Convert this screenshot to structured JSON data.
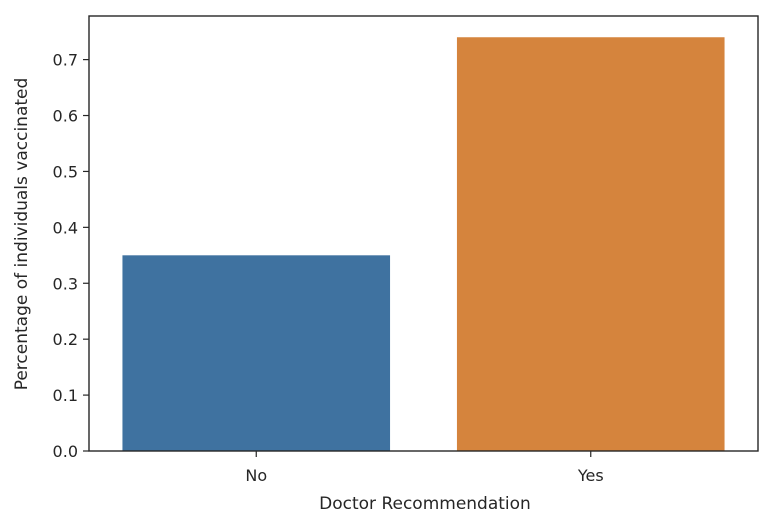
{
  "chart_data": {
    "type": "bar",
    "categories": [
      "No",
      "Yes"
    ],
    "values": [
      0.35,
      0.74
    ],
    "title": "",
    "xlabel": "Doctor Recommendation",
    "ylabel": "Percentage of individuals vaccinated",
    "ylim": [
      0,
      0.778
    ],
    "yticks": [
      "0.0",
      "0.1",
      "0.2",
      "0.3",
      "0.4",
      "0.5",
      "0.6",
      "0.7"
    ],
    "grid": false,
    "legend": "none",
    "colors": [
      "#3f72a0",
      "#d5843d"
    ]
  }
}
